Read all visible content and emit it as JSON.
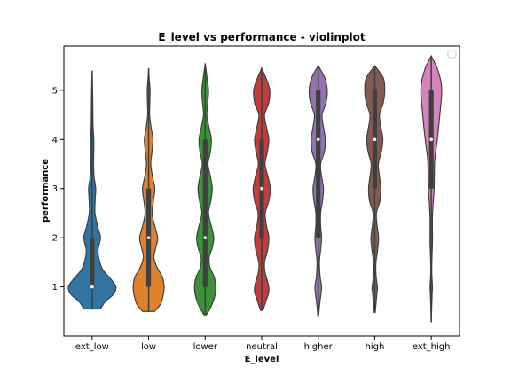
{
  "chart_data": {
    "type": "violin",
    "title": "E_level vs performance - violinplot",
    "xlabel": "E_level",
    "ylabel": "performance",
    "categories": [
      "ext_low",
      "low",
      "lower",
      "neutral",
      "higher",
      "high",
      "ext_high"
    ],
    "colors": [
      "#3274a1",
      "#e1812c",
      "#3a923a",
      "#c03d3e",
      "#9372b2",
      "#845b53",
      "#d684bd"
    ],
    "ylim": [
      0.0,
      5.9
    ],
    "yticks": [
      1,
      2,
      3,
      4,
      5
    ],
    "grid": false,
    "legend": "top-right, empty",
    "violins": [
      {
        "category": "ext_low",
        "min": 0.55,
        "max": 5.4,
        "median": 1,
        "q1": 1,
        "q3": 2,
        "density": [
          [
            0.55,
            0.35
          ],
          [
            0.7,
            0.55
          ],
          [
            0.85,
            0.9
          ],
          [
            1.0,
            1.0
          ],
          [
            1.15,
            0.8
          ],
          [
            1.35,
            0.45
          ],
          [
            1.55,
            0.3
          ],
          [
            1.75,
            0.25
          ],
          [
            2.0,
            0.35
          ],
          [
            2.2,
            0.25
          ],
          [
            2.5,
            0.12
          ],
          [
            2.8,
            0.13
          ],
          [
            3.0,
            0.15
          ],
          [
            3.25,
            0.08
          ],
          [
            3.5,
            0.06
          ],
          [
            3.8,
            0.07
          ],
          [
            4.0,
            0.07
          ],
          [
            4.25,
            0.04
          ],
          [
            4.6,
            0.03
          ],
          [
            5.0,
            0.02
          ],
          [
            5.4,
            0.0
          ]
        ]
      },
      {
        "category": "low",
        "min": 0.5,
        "max": 5.45,
        "median": 2,
        "q1": 1,
        "q3": 3,
        "density": [
          [
            0.5,
            0.25
          ],
          [
            0.65,
            0.5
          ],
          [
            0.85,
            0.62
          ],
          [
            1.0,
            0.65
          ],
          [
            1.2,
            0.58
          ],
          [
            1.4,
            0.35
          ],
          [
            1.6,
            0.22
          ],
          [
            1.8,
            0.3
          ],
          [
            2.0,
            0.38
          ],
          [
            2.25,
            0.25
          ],
          [
            2.5,
            0.15
          ],
          [
            2.75,
            0.2
          ],
          [
            3.0,
            0.26
          ],
          [
            3.25,
            0.16
          ],
          [
            3.5,
            0.09
          ],
          [
            3.75,
            0.14
          ],
          [
            4.0,
            0.18
          ],
          [
            4.25,
            0.1
          ],
          [
            4.5,
            0.04
          ],
          [
            4.75,
            0.05
          ],
          [
            5.0,
            0.06
          ],
          [
            5.2,
            0.03
          ],
          [
            5.45,
            0.0
          ]
        ]
      },
      {
        "category": "lower",
        "min": 0.43,
        "max": 5.55,
        "median": 2,
        "q1": 1,
        "q3": 4,
        "density": [
          [
            0.43,
            0.05
          ],
          [
            0.6,
            0.25
          ],
          [
            0.8,
            0.4
          ],
          [
            1.0,
            0.45
          ],
          [
            1.2,
            0.38
          ],
          [
            1.4,
            0.2
          ],
          [
            1.6,
            0.17
          ],
          [
            1.8,
            0.3
          ],
          [
            2.0,
            0.36
          ],
          [
            2.2,
            0.28
          ],
          [
            2.5,
            0.14
          ],
          [
            2.75,
            0.24
          ],
          [
            3.0,
            0.3
          ],
          [
            3.25,
            0.22
          ],
          [
            3.5,
            0.12
          ],
          [
            3.75,
            0.22
          ],
          [
            4.0,
            0.26
          ],
          [
            4.25,
            0.16
          ],
          [
            4.5,
            0.07
          ],
          [
            4.75,
            0.11
          ],
          [
            5.0,
            0.14
          ],
          [
            5.25,
            0.08
          ],
          [
            5.55,
            0.0
          ]
        ]
      },
      {
        "category": "neutral",
        "min": 0.52,
        "max": 5.45,
        "median": 3,
        "q1": 2,
        "q3": 4,
        "density": [
          [
            0.52,
            0.05
          ],
          [
            0.7,
            0.17
          ],
          [
            0.9,
            0.3
          ],
          [
            1.05,
            0.28
          ],
          [
            1.3,
            0.14
          ],
          [
            1.5,
            0.12
          ],
          [
            1.75,
            0.25
          ],
          [
            2.0,
            0.3
          ],
          [
            2.25,
            0.2
          ],
          [
            2.5,
            0.15
          ],
          [
            2.75,
            0.3
          ],
          [
            3.0,
            0.36
          ],
          [
            3.25,
            0.26
          ],
          [
            3.5,
            0.14
          ],
          [
            3.75,
            0.24
          ],
          [
            4.0,
            0.3
          ],
          [
            4.25,
            0.2
          ],
          [
            4.5,
            0.12
          ],
          [
            4.75,
            0.3
          ],
          [
            5.0,
            0.34
          ],
          [
            5.2,
            0.22
          ],
          [
            5.45,
            0.0
          ]
        ]
      },
      {
        "category": "higher",
        "min": 0.42,
        "max": 5.5,
        "median": 4,
        "q1": 2,
        "q3": 5,
        "density": [
          [
            0.42,
            0.02
          ],
          [
            0.6,
            0.05
          ],
          [
            0.8,
            0.1
          ],
          [
            1.0,
            0.14
          ],
          [
            1.2,
            0.08
          ],
          [
            1.5,
            0.05
          ],
          [
            1.75,
            0.1
          ],
          [
            2.0,
            0.14
          ],
          [
            2.25,
            0.1
          ],
          [
            2.5,
            0.1
          ],
          [
            2.75,
            0.18
          ],
          [
            3.0,
            0.22
          ],
          [
            3.25,
            0.14
          ],
          [
            3.5,
            0.1
          ],
          [
            3.75,
            0.26
          ],
          [
            4.0,
            0.3
          ],
          [
            4.25,
            0.22
          ],
          [
            4.5,
            0.16
          ],
          [
            4.75,
            0.33
          ],
          [
            5.0,
            0.38
          ],
          [
            5.25,
            0.28
          ],
          [
            5.5,
            0.0
          ]
        ]
      },
      {
        "category": "high",
        "min": 0.48,
        "max": 5.5,
        "median": 4,
        "q1": 3,
        "q3": 5,
        "density": [
          [
            0.48,
            0.02
          ],
          [
            0.7,
            0.06
          ],
          [
            0.9,
            0.1
          ],
          [
            1.0,
            0.11
          ],
          [
            1.25,
            0.05
          ],
          [
            1.5,
            0.05
          ],
          [
            1.75,
            0.12
          ],
          [
            2.0,
            0.16
          ],
          [
            2.25,
            0.1
          ],
          [
            2.5,
            0.07
          ],
          [
            2.75,
            0.22
          ],
          [
            3.0,
            0.26
          ],
          [
            3.25,
            0.2
          ],
          [
            3.5,
            0.15
          ],
          [
            3.75,
            0.28
          ],
          [
            4.0,
            0.34
          ],
          [
            4.25,
            0.26
          ],
          [
            4.5,
            0.2
          ],
          [
            4.75,
            0.36
          ],
          [
            5.0,
            0.42
          ],
          [
            5.25,
            0.36
          ],
          [
            5.5,
            0.0
          ]
        ]
      },
      {
        "category": "ext_high",
        "min": 0.28,
        "max": 5.7,
        "median": 4,
        "q1": 3,
        "q3": 5,
        "density": [
          [
            0.28,
            0.0
          ],
          [
            0.6,
            0.02
          ],
          [
            0.9,
            0.04
          ],
          [
            1.0,
            0.05
          ],
          [
            1.3,
            0.02
          ],
          [
            1.6,
            0.03
          ],
          [
            1.9,
            0.05
          ],
          [
            2.1,
            0.05
          ],
          [
            2.4,
            0.05
          ],
          [
            2.7,
            0.08
          ],
          [
            3.0,
            0.12
          ],
          [
            3.3,
            0.13
          ],
          [
            3.6,
            0.15
          ],
          [
            3.9,
            0.23
          ],
          [
            4.2,
            0.3
          ],
          [
            4.5,
            0.36
          ],
          [
            4.8,
            0.42
          ],
          [
            5.0,
            0.44
          ],
          [
            5.2,
            0.4
          ],
          [
            5.45,
            0.25
          ],
          [
            5.7,
            0.0
          ]
        ]
      }
    ]
  }
}
